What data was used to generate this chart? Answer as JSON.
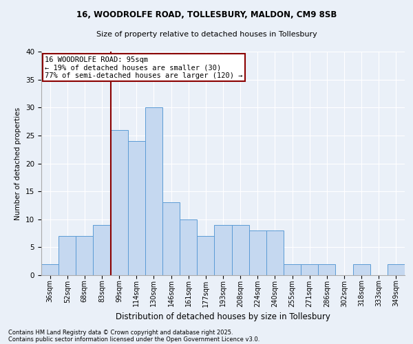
{
  "title1": "16, WOODROLFE ROAD, TOLLESBURY, MALDON, CM9 8SB",
  "title2": "Size of property relative to detached houses in Tollesbury",
  "xlabel": "Distribution of detached houses by size in Tollesbury",
  "ylabel": "Number of detached properties",
  "categories": [
    "36sqm",
    "52sqm",
    "68sqm",
    "83sqm",
    "99sqm",
    "114sqm",
    "130sqm",
    "146sqm",
    "161sqm",
    "177sqm",
    "193sqm",
    "208sqm",
    "224sqm",
    "240sqm",
    "255sqm",
    "271sqm",
    "286sqm",
    "302sqm",
    "318sqm",
    "333sqm",
    "349sqm"
  ],
  "values": [
    2,
    7,
    7,
    9,
    26,
    24,
    30,
    13,
    10,
    7,
    9,
    9,
    8,
    8,
    2,
    2,
    2,
    0,
    2,
    0,
    2
  ],
  "bar_color": "#c5d8f0",
  "bar_edge_color": "#5b9bd5",
  "vline_x_index": 4,
  "vline_color": "#8b0000",
  "annotation_line1": "16 WOODROLFE ROAD: 95sqm",
  "annotation_line2": "← 19% of detached houses are smaller (30)",
  "annotation_line3": "77% of semi-detached houses are larger (120) →",
  "annotation_box_color": "#8b0000",
  "annotation_face_color": "white",
  "ylim": [
    0,
    40
  ],
  "yticks": [
    0,
    5,
    10,
    15,
    20,
    25,
    30,
    35,
    40
  ],
  "footer1": "Contains HM Land Registry data © Crown copyright and database right 2025.",
  "footer2": "Contains public sector information licensed under the Open Government Licence v3.0.",
  "bg_color": "#eaf0f8",
  "plot_bg_color": "#eaf0f8",
  "grid_color": "white",
  "title1_fontsize": 8.5,
  "title2_fontsize": 8.0,
  "xlabel_fontsize": 8.5,
  "ylabel_fontsize": 7.5,
  "xtick_fontsize": 7.0,
  "ytick_fontsize": 7.5,
  "footer_fontsize": 6.0,
  "ann_fontsize": 7.5
}
